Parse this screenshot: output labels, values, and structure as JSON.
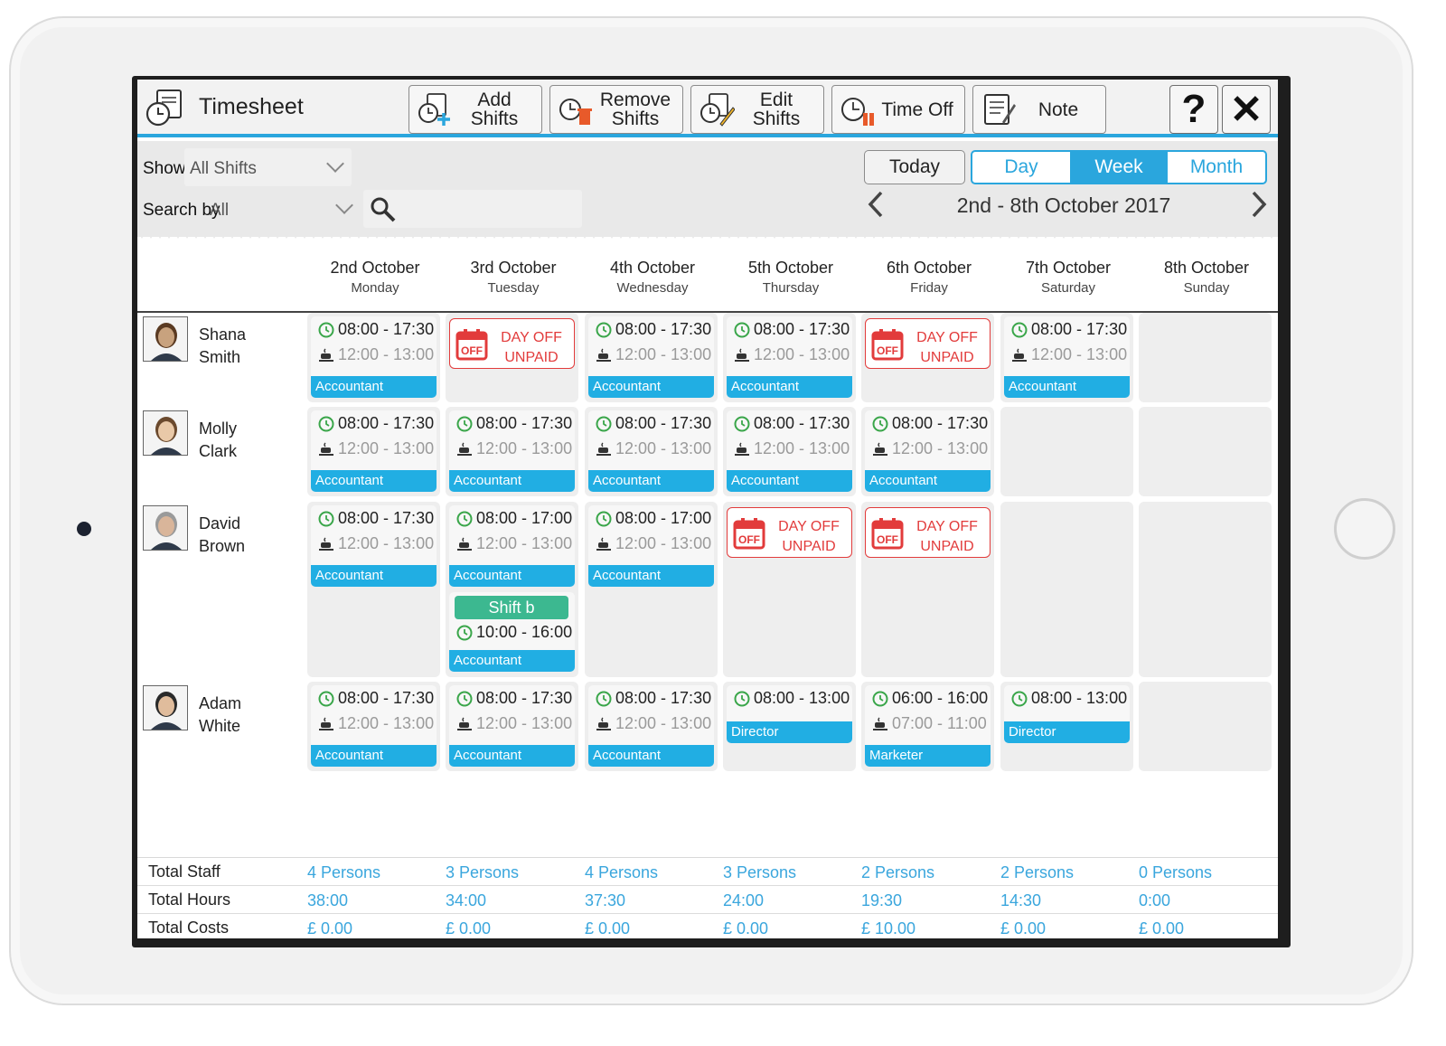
{
  "app": {
    "title": "Timesheet"
  },
  "toolbar": {
    "add_shifts": "Add Shifts",
    "remove_shifts": "Remove\nShifts",
    "edit_shifts": "Edit Shifts",
    "time_off": "Time Off",
    "note": "Note",
    "help": "?",
    "close": "✕"
  },
  "filters": {
    "show_label": "Show",
    "show_value": "All Shifts",
    "search_by_label": "Search by",
    "search_by_value": "All",
    "search_placeholder": ""
  },
  "view": {
    "today": "Today",
    "modes": [
      "Day",
      "Week",
      "Month"
    ],
    "active_mode": "Week",
    "date_range": "2nd - 8th October 2017"
  },
  "days": [
    {
      "date": "2nd October",
      "weekday": "Monday"
    },
    {
      "date": "3rd October",
      "weekday": "Tuesday"
    },
    {
      "date": "4th October",
      "weekday": "Wednesday"
    },
    {
      "date": "5th October",
      "weekday": "Thursday"
    },
    {
      "date": "6th October",
      "weekday": "Friday"
    },
    {
      "date": "7th October",
      "weekday": "Saturday"
    },
    {
      "date": "8th October",
      "weekday": "Sunday"
    }
  ],
  "employees": [
    {
      "name": "Shana\nSmith",
      "cells": [
        {
          "type": "shift",
          "time": "08:00 - 17:30",
          "break": "12:00 - 13:00",
          "role": "Accountant"
        },
        {
          "type": "dayoff",
          "text": "DAY OFF\nUNPAID"
        },
        {
          "type": "shift",
          "time": "08:00 - 17:30",
          "break": "12:00 - 13:00",
          "role": "Accountant"
        },
        {
          "type": "shift",
          "time": "08:00 - 17:30",
          "break": "12:00 - 13:00",
          "role": "Accountant"
        },
        {
          "type": "dayoff",
          "text": "DAY OFF\nUNPAID"
        },
        {
          "type": "shift",
          "time": "08:00 - 17:30",
          "break": "12:00 - 13:00",
          "role": "Accountant"
        },
        {
          "type": "empty"
        }
      ]
    },
    {
      "name": "Molly\nClark",
      "cells": [
        {
          "type": "shift",
          "time": "08:00 - 17:30",
          "break": "12:00 - 13:00",
          "role": "Accountant"
        },
        {
          "type": "shift",
          "time": "08:00 - 17:30",
          "break": "12:00 - 13:00",
          "role": "Accountant"
        },
        {
          "type": "shift",
          "time": "08:00 - 17:30",
          "break": "12:00 - 13:00",
          "role": "Accountant"
        },
        {
          "type": "shift",
          "time": "08:00 - 17:30",
          "break": "12:00 - 13:00",
          "role": "Accountant"
        },
        {
          "type": "shift",
          "time": "08:00 - 17:30",
          "break": "12:00 - 13:00",
          "role": "Accountant"
        },
        {
          "type": "empty"
        },
        {
          "type": "empty"
        }
      ]
    },
    {
      "name": "David\nBrown",
      "cells": [
        {
          "type": "shift",
          "time": "08:00 - 17:30",
          "break": "12:00 - 13:00",
          "role": "Accountant"
        },
        {
          "type": "shift",
          "time": "08:00 - 17:00",
          "break": "12:00 - 13:00",
          "role": "Accountant",
          "extra": {
            "label": "Shift b",
            "time": "10:00 - 16:00",
            "role": "Accountant"
          }
        },
        {
          "type": "shift",
          "time": "08:00 - 17:00",
          "break": "12:00 - 13:00",
          "role": "Accountant"
        },
        {
          "type": "dayoff",
          "text": "DAY OFF\nUNPAID"
        },
        {
          "type": "dayoff",
          "text": "DAY OFF\nUNPAID"
        },
        {
          "type": "empty"
        },
        {
          "type": "empty"
        }
      ]
    },
    {
      "name": "Adam\nWhite",
      "cells": [
        {
          "type": "shift",
          "time": "08:00 - 17:30",
          "break": "12:00 - 13:00",
          "role": "Accountant"
        },
        {
          "type": "shift",
          "time": "08:00 - 17:30",
          "break": "12:00 - 13:00",
          "role": "Accountant"
        },
        {
          "type": "shift",
          "time": "08:00 - 17:30",
          "break": "12:00 - 13:00",
          "role": "Accountant"
        },
        {
          "type": "shift",
          "time": "08:00 - 13:00",
          "role": "Director"
        },
        {
          "type": "shift",
          "time": "06:00 - 16:00",
          "break": "07:00 - 11:00",
          "role": "Marketer"
        },
        {
          "type": "shift",
          "time": "08:00 - 13:00",
          "role": "Director"
        },
        {
          "type": "empty"
        }
      ]
    }
  ],
  "totals": [
    {
      "label": "Total Staff",
      "values": [
        "4 Persons",
        "3 Persons",
        "4 Persons",
        "3 Persons",
        "2 Persons",
        "2 Persons",
        "0 Persons"
      ]
    },
    {
      "label": "Total Hours",
      "values": [
        "38:00",
        "34:00",
        "37:30",
        "24:00",
        "19:30",
        "14:30",
        "0:00"
      ]
    },
    {
      "label": "Total Costs",
      "values": [
        "£ 0.00",
        "£ 0.00",
        "£ 0.00",
        "£ 0.00",
        "£ 10.00",
        "£ 0.00",
        "£ 0.00"
      ]
    }
  ],
  "colors": {
    "accent": "#2aa6dd",
    "role_bar": "#21aee3",
    "day_off": "#e23b3b",
    "extra_shift": "#3cb890",
    "clock": "#3aa64a"
  }
}
